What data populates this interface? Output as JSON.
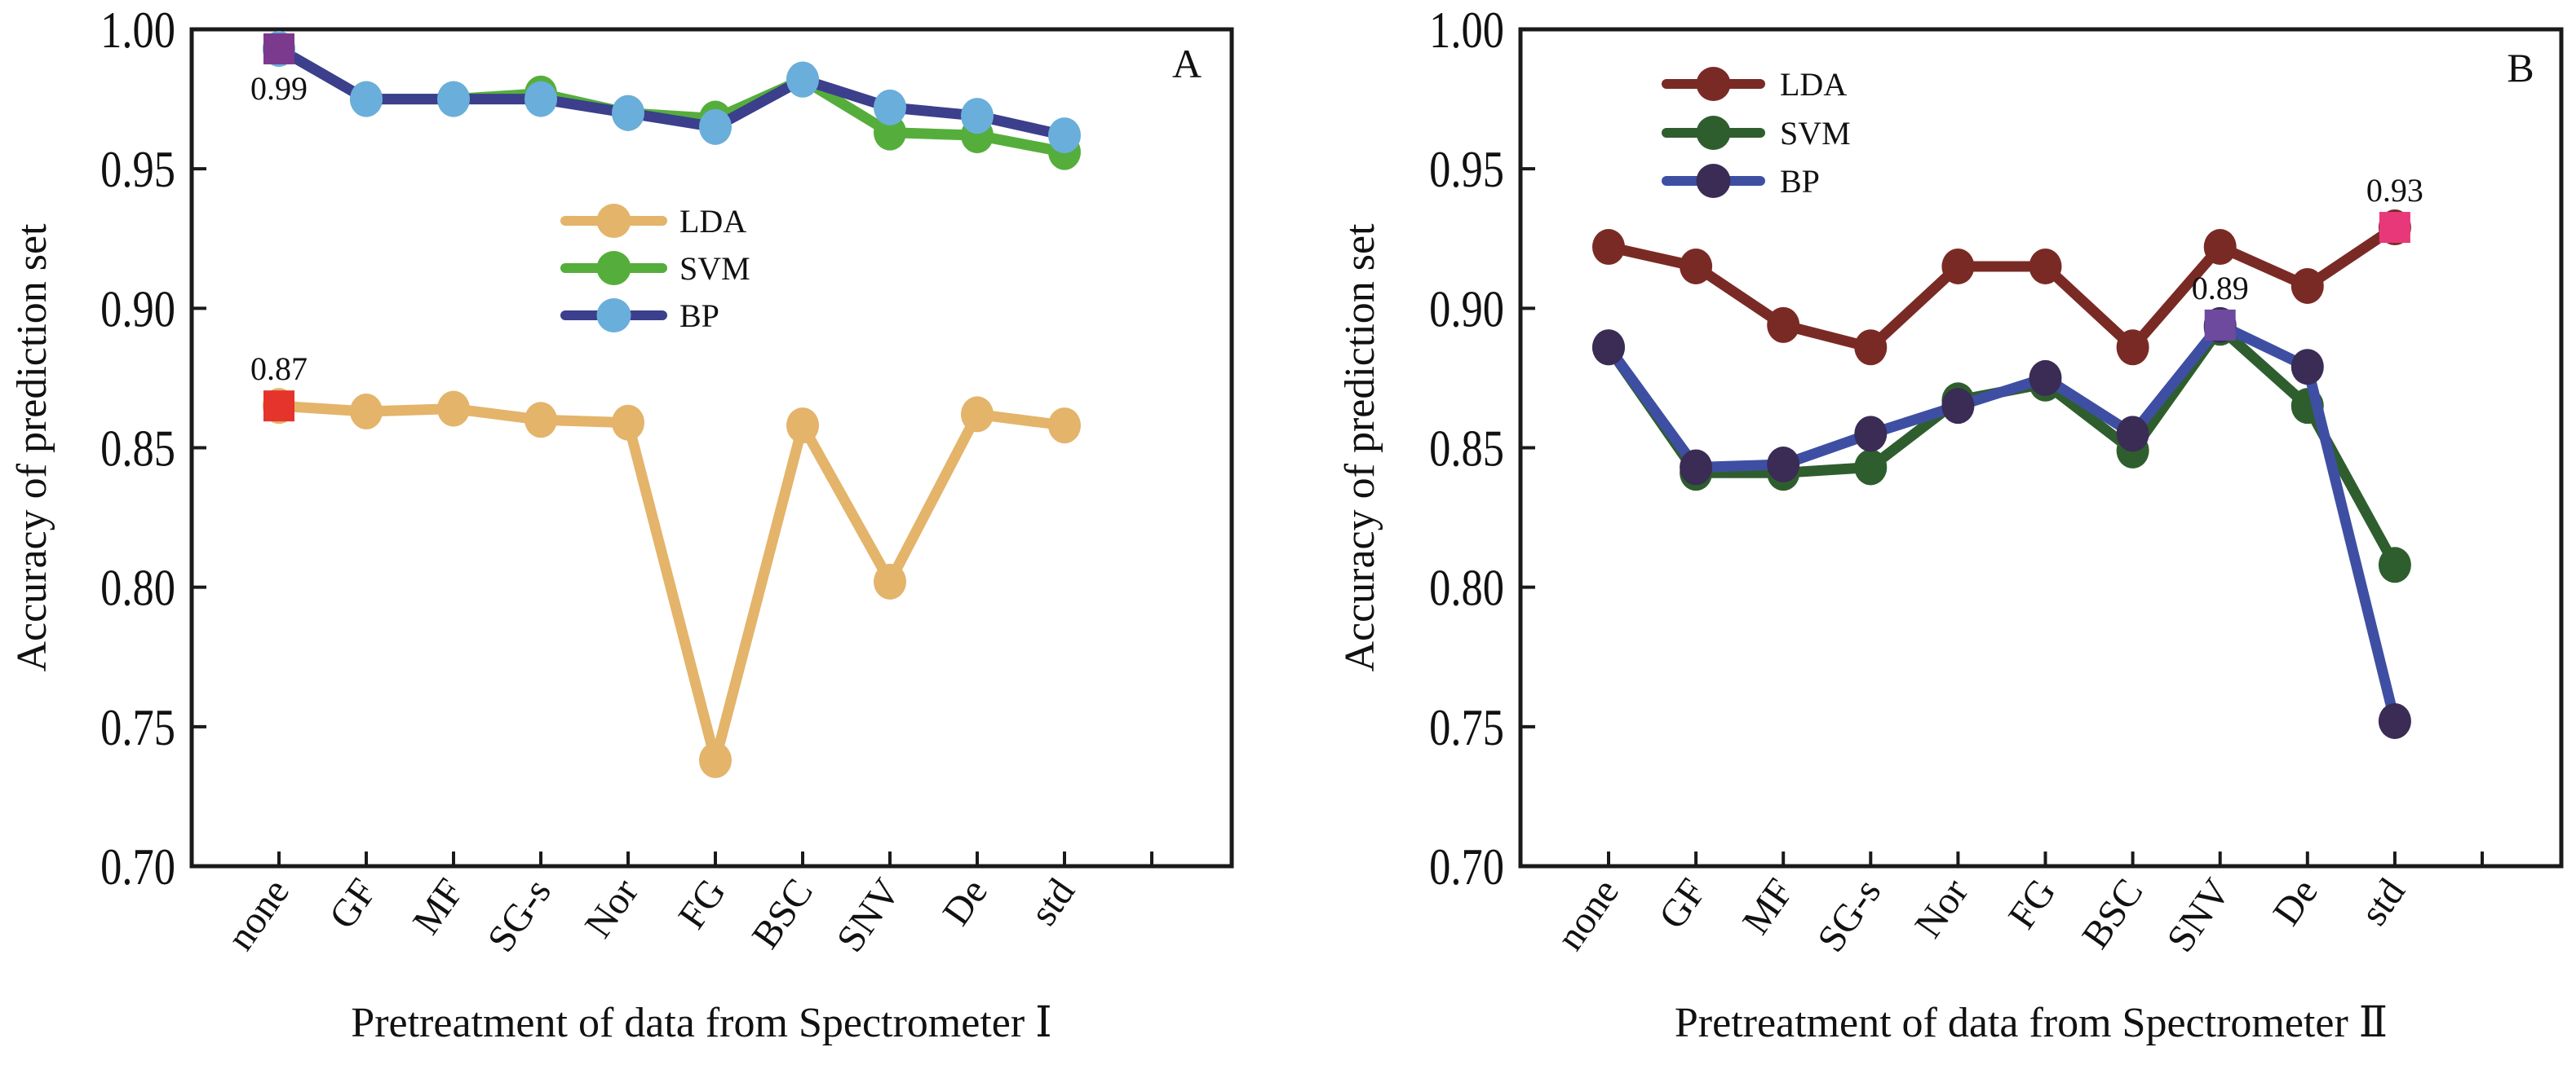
{
  "chart_data": [
    {
      "type": "line",
      "panel_label": "A",
      "categories": [
        "none",
        "GF",
        "MF",
        "SG-s",
        "Nor",
        "FG",
        "BSC",
        "SNV",
        "De",
        "std"
      ],
      "xlabel": "Pretreatment of data from Spectrometer  Ⅰ",
      "ylabel": "Accuracy of prediction set",
      "ylim": [
        0.7,
        1.0
      ],
      "yticks": [
        0.7,
        0.75,
        0.8,
        0.85,
        0.9,
        0.95,
        1.0
      ],
      "ytick_labels": [
        "0.70",
        "0.75",
        "0.80",
        "0.85",
        "0.90",
        "0.95",
        "1.00"
      ],
      "grid": false,
      "legend_position": "center",
      "series": [
        {
          "name": "LDA",
          "line_color": "#E3B46A",
          "marker_color": "#E3B46A",
          "values": [
            0.865,
            0.863,
            0.864,
            0.86,
            0.859,
            0.738,
            0.858,
            0.802,
            0.862,
            0.858
          ]
        },
        {
          "name": "SVM",
          "line_color": "#55AE3B",
          "marker_color": "#55AE3B",
          "values": [
            0.993,
            0.975,
            0.975,
            0.977,
            0.97,
            0.968,
            0.982,
            0.963,
            0.962,
            0.956
          ]
        },
        {
          "name": "BP",
          "line_color": "#3B3F8C",
          "marker_color": "#6AAEDB",
          "values": [
            0.993,
            0.975,
            0.975,
            0.975,
            0.97,
            0.965,
            0.982,
            0.972,
            0.969,
            0.962
          ]
        }
      ],
      "highlights": [
        {
          "series": "BP",
          "category": "none",
          "label": "0.99",
          "color": "#7B3A8E",
          "label_position": "below"
        },
        {
          "series": "LDA",
          "category": "none",
          "label": "0.87",
          "color": "#E5342C",
          "label_position": "above"
        }
      ]
    },
    {
      "type": "line",
      "panel_label": "B",
      "categories": [
        "none",
        "GF",
        "MF",
        "SG-s",
        "Nor",
        "FG",
        "BSC",
        "SNV",
        "De",
        "std"
      ],
      "xlabel": "Pretreatment of data from Spectrometer  Ⅱ",
      "ylabel": "Accuracy of prediction set",
      "ylim": [
        0.7,
        1.0
      ],
      "yticks": [
        0.7,
        0.75,
        0.8,
        0.85,
        0.9,
        0.95,
        1.0
      ],
      "ytick_labels": [
        "0.70",
        "0.75",
        "0.80",
        "0.85",
        "0.90",
        "0.95",
        "1.00"
      ],
      "grid": false,
      "legend_position": "top-left",
      "series": [
        {
          "name": "LDA",
          "line_color": "#7A2A25",
          "marker_color": "#7A2A25",
          "values": [
            0.922,
            0.915,
            0.894,
            0.886,
            0.915,
            0.915,
            0.886,
            0.922,
            0.908,
            0.929
          ]
        },
        {
          "name": "SVM",
          "line_color": "#2F5E2E",
          "marker_color": "#2F5E2E",
          "values": [
            0.886,
            0.841,
            0.841,
            0.843,
            0.867,
            0.873,
            0.849,
            0.893,
            0.865,
            0.808
          ]
        },
        {
          "name": "BP",
          "line_color": "#3E4FA3",
          "marker_color": "#3A2C55",
          "values": [
            0.886,
            0.843,
            0.844,
            0.855,
            0.865,
            0.875,
            0.855,
            0.894,
            0.879,
            0.752
          ]
        }
      ],
      "highlights": [
        {
          "series": "BP",
          "category": "SNV",
          "label": "0.89",
          "color": "#6E4A9E",
          "label_position": "above"
        },
        {
          "series": "LDA",
          "category": "std",
          "label": "0.93",
          "color": "#E8387A",
          "label_position": "above"
        }
      ]
    }
  ]
}
